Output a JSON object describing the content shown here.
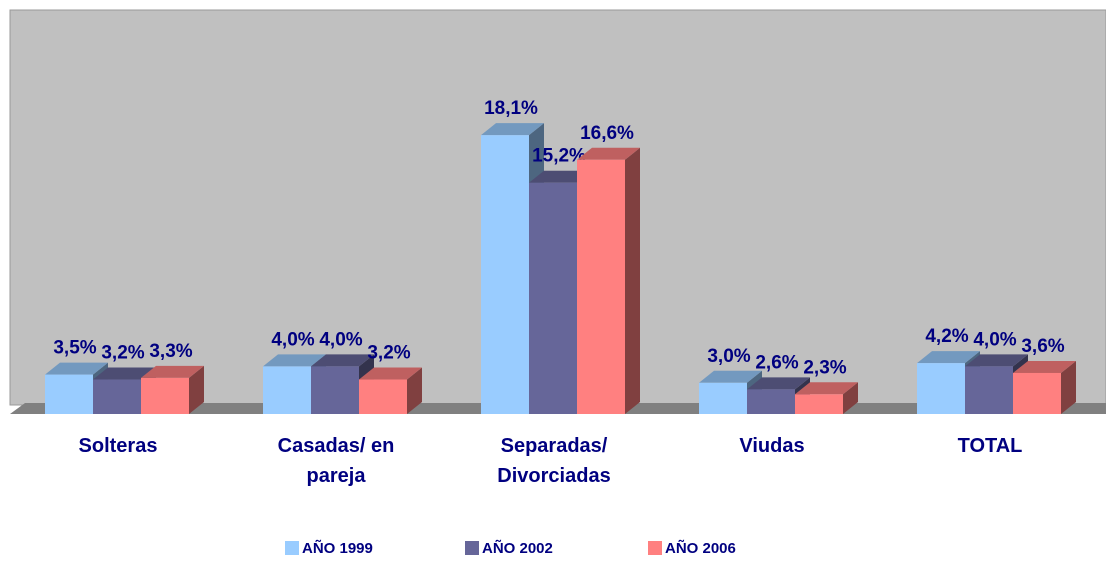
{
  "chart_data": {
    "type": "bar3d",
    "categories": [
      [
        "Solteras"
      ],
      [
        "Casadas/ en",
        "pareja"
      ],
      [
        "Separadas/",
        "Divorciadas"
      ],
      [
        "Viudas"
      ],
      [
        "TOTAL"
      ]
    ],
    "series": [
      {
        "name": "AÑO 1999",
        "color": "#99ccff",
        "values": [
          3.5,
          4.0,
          18.1,
          3.0,
          4.2
        ],
        "value_labels": [
          "3,5%",
          "4,0%",
          "18,1%",
          "3,0%",
          "4,2%"
        ]
      },
      {
        "name": "AÑO 2002",
        "color": "#666699",
        "values": [
          3.2,
          4.0,
          15.2,
          2.6,
          4.0
        ],
        "value_labels": [
          "3,2%",
          "4,0%",
          "15,2%",
          "2,6%",
          "4,0%"
        ]
      },
      {
        "name": "AÑO 2006",
        "color": "#ff8080",
        "values": [
          3.3,
          3.2,
          16.6,
          2.3,
          3.6
        ],
        "value_labels": [
          "3,3%",
          "3,2%",
          "16,6%",
          "2,3%",
          "3,6%"
        ]
      }
    ]
  }
}
